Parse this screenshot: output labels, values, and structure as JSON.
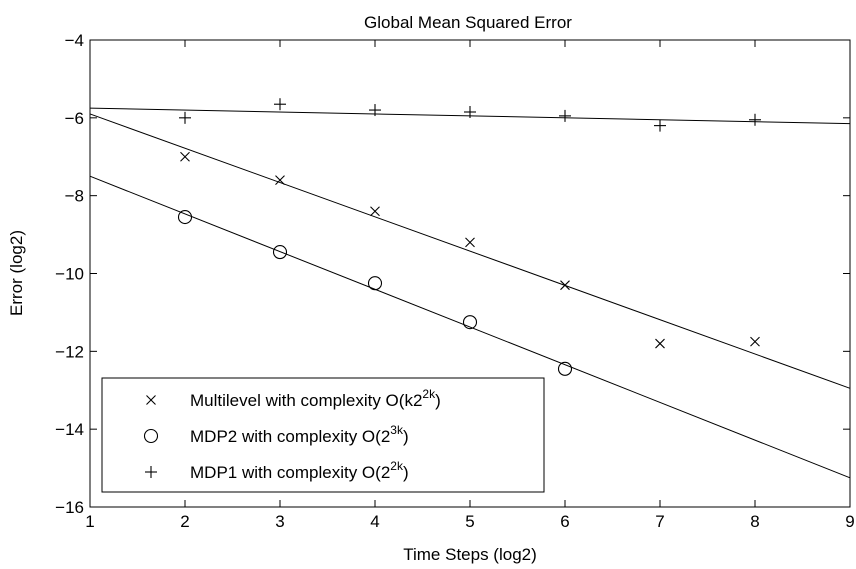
{
  "chart_data": {
    "type": "scatter",
    "title": "Global Mean Squared Error",
    "xlabel": "Time Steps (log2)",
    "ylabel": "Error (log2)",
    "xlim": [
      1,
      9
    ],
    "ylim": [
      -16,
      -4
    ],
    "xticks": [
      "1",
      "2",
      "3",
      "4",
      "5",
      "6",
      "7",
      "8",
      "9"
    ],
    "yticks": [
      "−4",
      "−6",
      "−8",
      "−10",
      "−12",
      "−14",
      "−16"
    ],
    "grid": false,
    "legend_position": "bottom-left",
    "series": [
      {
        "name": "Multilevel with complexity O(k2^2k)",
        "legend_text": "Multilevel with complexity O(k2",
        "legend_sup": "2k",
        "legend_tail": ")",
        "marker": "x",
        "x": [
          2,
          3,
          4,
          5,
          6,
          7,
          8
        ],
        "y": [
          -7.0,
          -7.6,
          -8.4,
          -9.2,
          -10.3,
          -11.8,
          -11.75
        ],
        "fit": {
          "x": [
            1,
            9
          ],
          "y": [
            -5.9,
            -12.95
          ]
        }
      },
      {
        "name": "MDP2 with complexity O(2^3k)",
        "legend_text": "MDP2 with complexity O(2",
        "legend_sup": "3k",
        "legend_tail": ")",
        "marker": "o",
        "x": [
          2,
          3,
          4,
          5,
          6
        ],
        "y": [
          -8.55,
          -9.45,
          -10.25,
          -11.25,
          -12.45
        ],
        "fit": {
          "x": [
            1,
            9
          ],
          "y": [
            -7.5,
            -15.25
          ]
        }
      },
      {
        "name": "MDP1 with complexity O(2^2k)",
        "legend_text": "MDP1 with complexity O(2",
        "legend_sup": "2k",
        "legend_tail": ")",
        "marker": "+",
        "x": [
          2,
          3,
          4,
          5,
          6,
          7,
          8
        ],
        "y": [
          -6.0,
          -5.65,
          -5.8,
          -5.85,
          -5.95,
          -6.2,
          -6.05
        ],
        "fit": {
          "x": [
            1,
            9
          ],
          "y": [
            -5.75,
            -6.15
          ]
        }
      }
    ]
  }
}
